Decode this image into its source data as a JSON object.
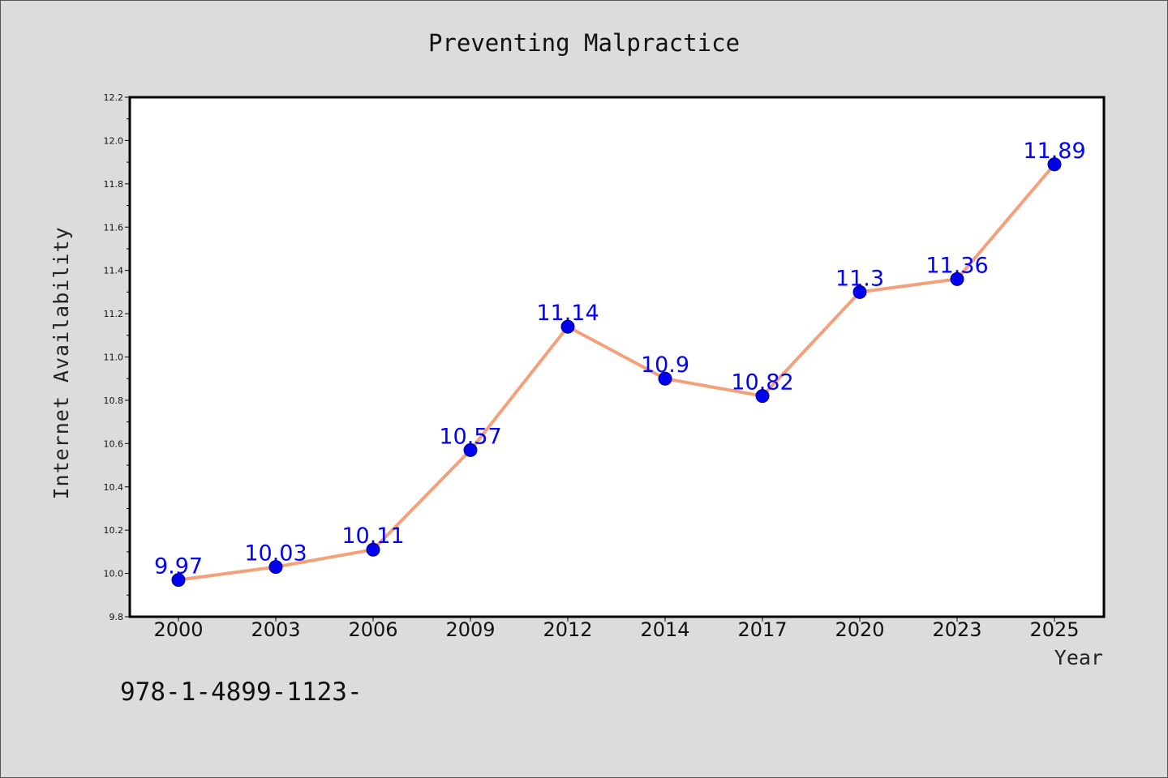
{
  "chart_data": {
    "type": "line",
    "title": "Preventing Malpractice",
    "xlabel": "Year",
    "ylabel": "Internet Availability",
    "categories": [
      "2000",
      "2003",
      "2006",
      "2009",
      "2012",
      "2014",
      "2017",
      "2020",
      "2023",
      "2025"
    ],
    "series": [
      {
        "values": [
          9.97,
          10.03,
          10.11,
          10.57,
          11.14,
          10.9,
          10.82,
          11.3,
          11.36,
          11.89
        ]
      }
    ],
    "data_labels": [
      "9.97",
      "10.03",
      "10.11",
      "10.57",
      "11.14",
      "10.9",
      "10.82",
      "11.3",
      "11.36",
      "11.89"
    ],
    "ylim": [
      9.8,
      12.2
    ],
    "yticks": [
      "9.8",
      "10.0",
      "10.2",
      "10.4",
      "10.6",
      "10.8",
      "11.0",
      "11.2",
      "11.4",
      "11.6",
      "11.8",
      "12.0",
      "12.2"
    ],
    "grid": false,
    "colors": {
      "line": "#f4a07a",
      "marker": "#0000ee",
      "marker_edge": "#000080",
      "label": "#0000ff",
      "background": "#dcdcdc",
      "plot_background": "#ffffff"
    }
  },
  "annotation": "978-1-4899-1123-"
}
